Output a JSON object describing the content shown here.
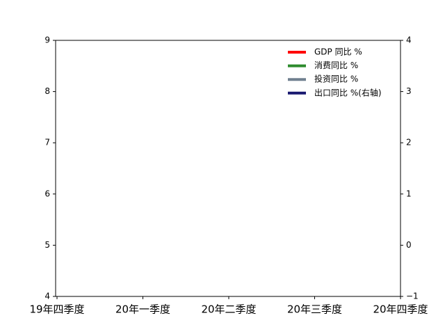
{
  "chart_data": {
    "type": "line",
    "categories": [
      "19年四季度",
      "20年一季度",
      "20年二季度",
      "20年三季度",
      "20年四季度"
    ],
    "series": [
      {
        "name": "GDP 同比 %",
        "color": "#ff0000",
        "values": [
          null,
          null,
          null,
          null,
          null
        ]
      },
      {
        "name": "消费同比 %",
        "color": "#2e8b2e",
        "values": [
          null,
          null,
          null,
          null,
          null
        ]
      },
      {
        "name": "投资同比 %",
        "color": "#708090",
        "values": [
          null,
          null,
          null,
          null,
          null
        ]
      },
      {
        "name": "出口同比 %(右轴)",
        "color": "#191970",
        "values": [
          null,
          null,
          null,
          null,
          null
        ],
        "axis": "y2"
      }
    ],
    "ylim": [
      4,
      9
    ],
    "yticks": [
      4,
      5,
      6,
      7,
      8,
      9
    ],
    "y2lim": [
      -1,
      4
    ],
    "y2ticks": [
      {
        "value": -1,
        "label": "−1"
      },
      0,
      1,
      2,
      3,
      4
    ],
    "legend": "upper right"
  }
}
